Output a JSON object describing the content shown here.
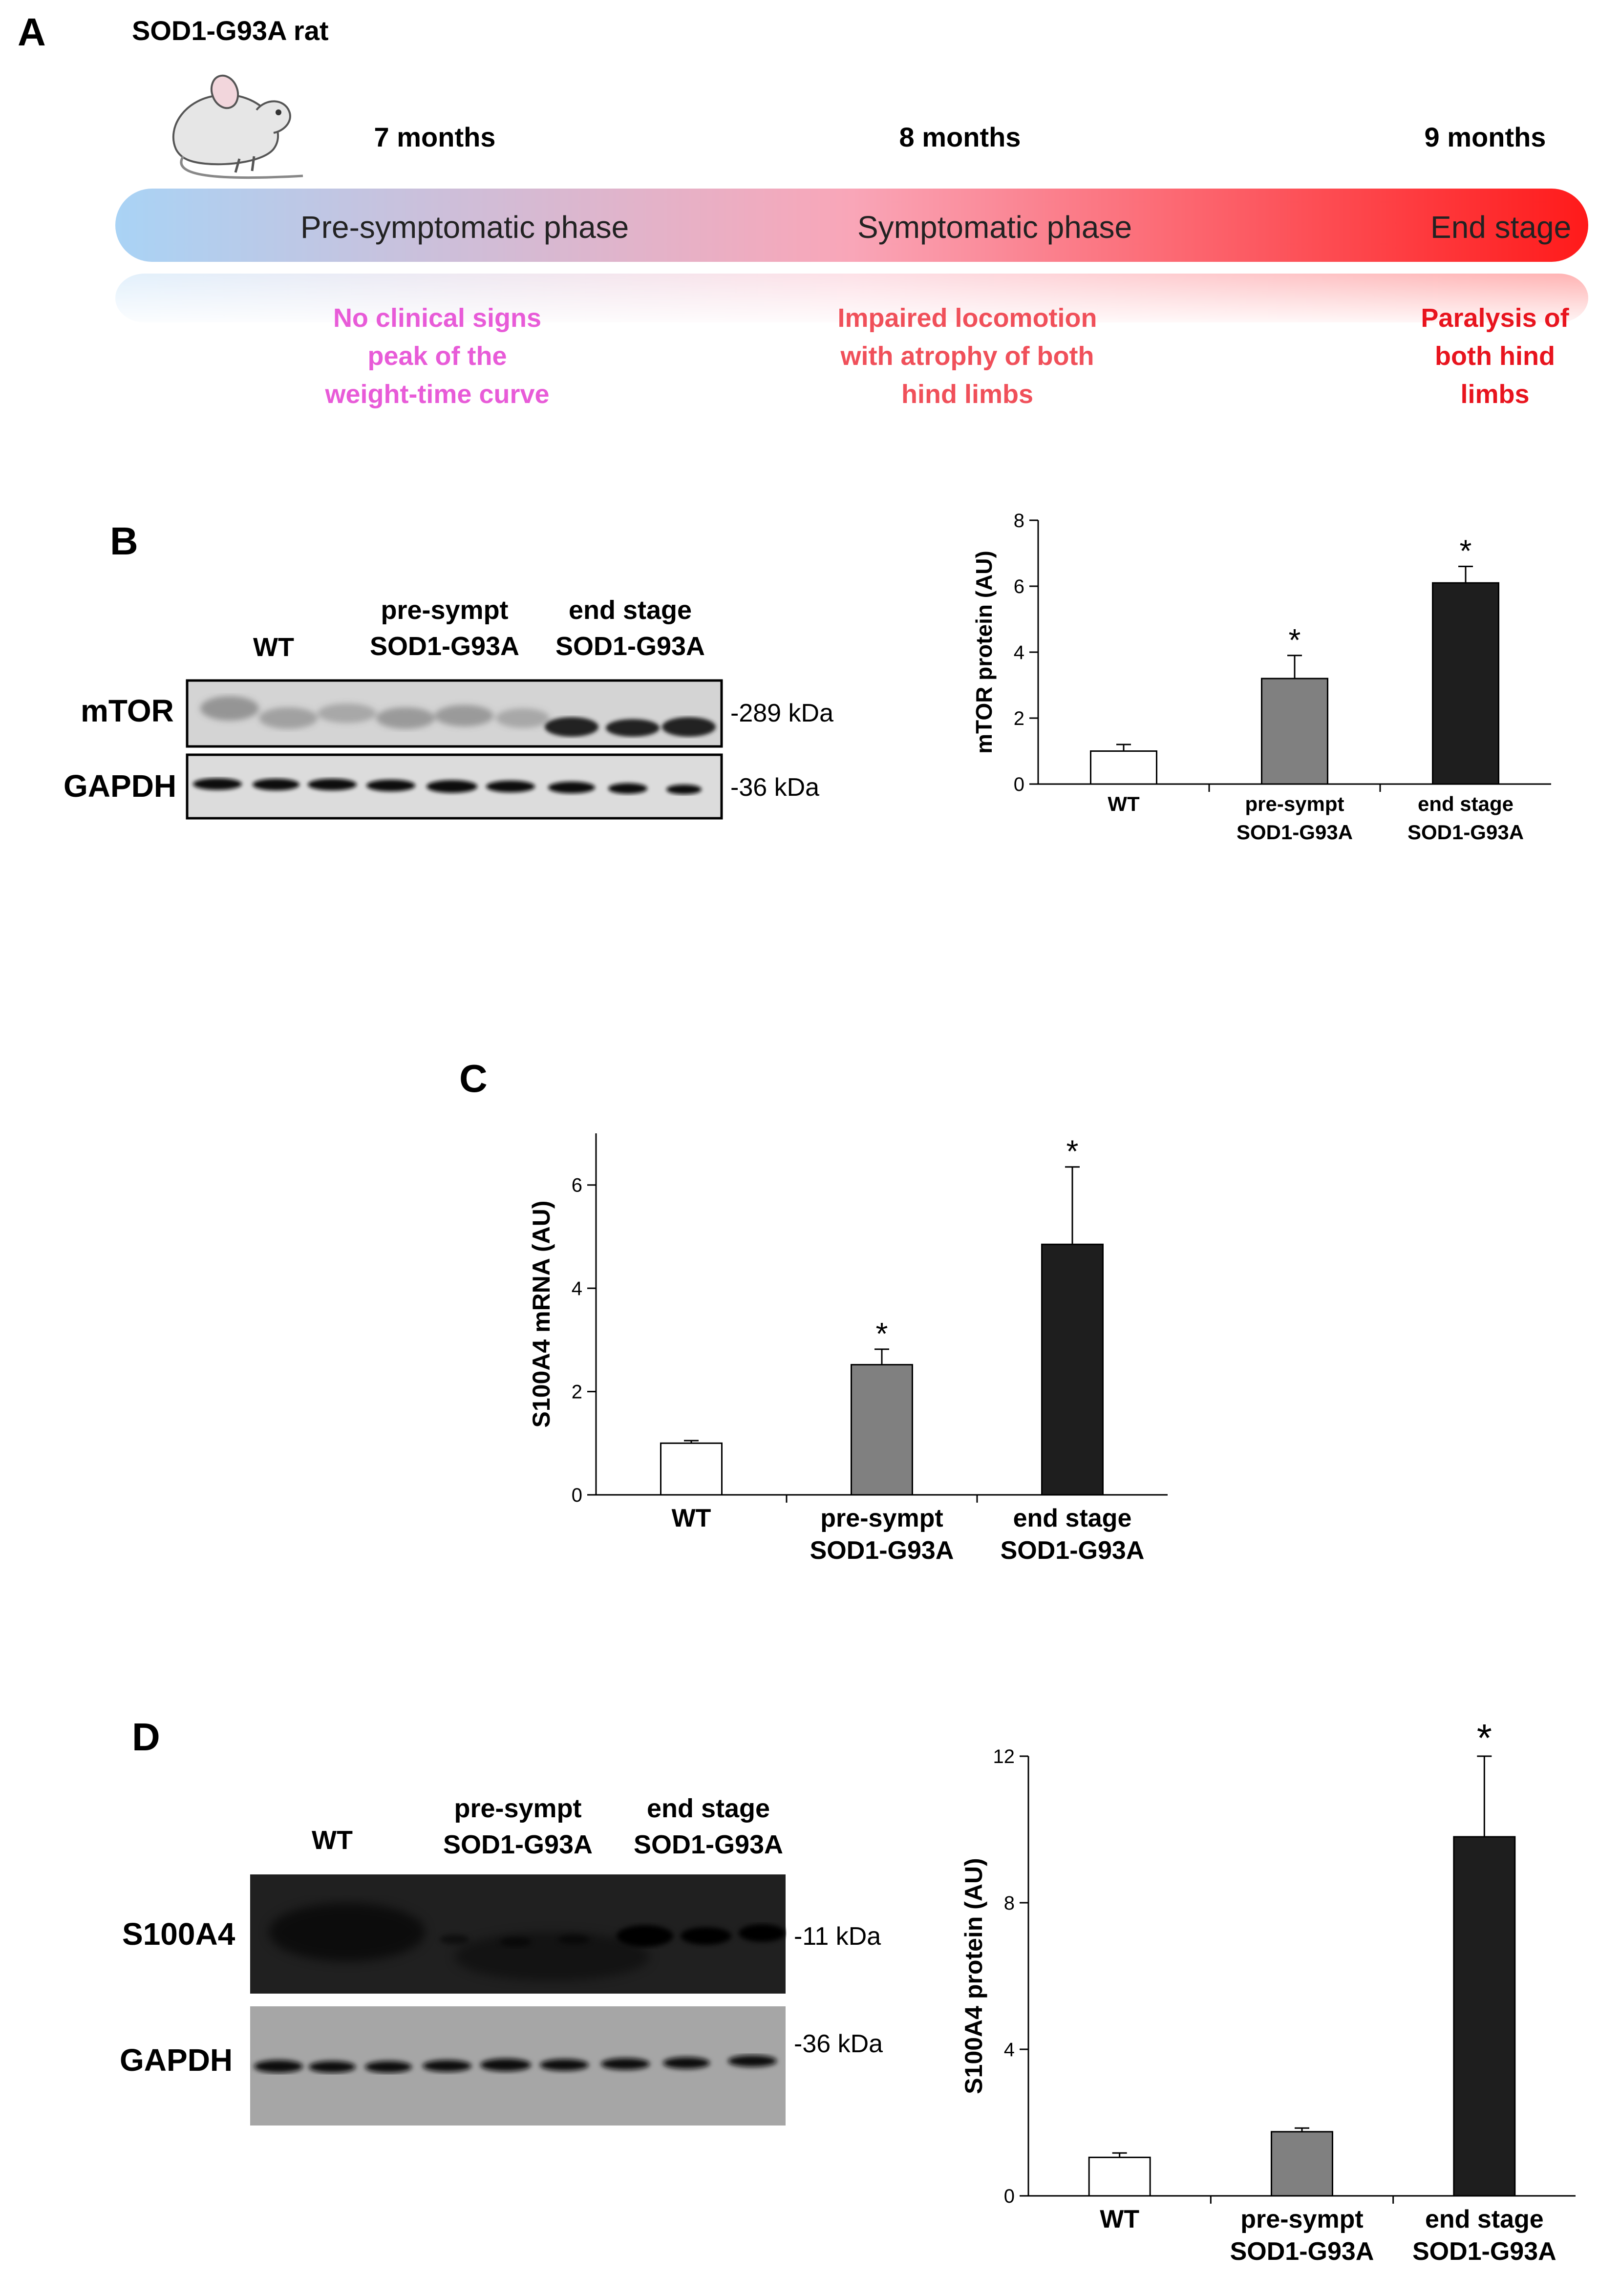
{
  "panel_a": {
    "letter": "A",
    "model": "SOD1-G93A rat",
    "times": [
      "7 months",
      "8 months",
      "9 months"
    ],
    "phases": [
      "Pre-symptomatic phase",
      "Symptomatic phase",
      "End stage"
    ],
    "descriptions": [
      {
        "lines": [
          "No clinical signs",
          "peak of the",
          "weight-time curve"
        ],
        "color": "#e85bd8"
      },
      {
        "lines": [
          "Impaired locomotion",
          "with atrophy of both",
          "hind limbs"
        ],
        "color": "#f0505a"
      },
      {
        "lines": [
          "Paralysis of",
          "both hind",
          "limbs"
        ],
        "color": "#e8141e"
      }
    ],
    "gradient": {
      "start": "#a9d3f5",
      "mid": "#f9a6b8",
      "end": "#ff1a1a"
    }
  },
  "panel_b": {
    "letter": "B",
    "blot": {
      "lanes": [
        [
          "WT"
        ],
        [
          "pre-sympt",
          "SOD1-G93A"
        ],
        [
          "end stage",
          "SOD1-G93A"
        ]
      ],
      "proteins": [
        "mTOR",
        "GAPDH"
      ],
      "sizes": [
        "-289 kDa",
        "-36 kDa"
      ]
    }
  },
  "panel_c": {
    "letter": "C"
  },
  "panel_d": {
    "letter": "D",
    "blot": {
      "lanes": [
        [
          "WT"
        ],
        [
          "pre-sympt",
          "SOD1-G93A"
        ],
        [
          "end stage",
          "SOD1-G93A"
        ]
      ],
      "proteins": [
        "S100A4",
        "GAPDH"
      ],
      "sizes": [
        "-11 kDa",
        "-36 kDa"
      ]
    }
  },
  "chart_data": [
    {
      "id": "chart-b",
      "type": "bar",
      "title": "",
      "xlabel": "",
      "ylabel": "mTOR protein  (AU)",
      "categories": [
        [
          "WT"
        ],
        [
          "pre-sympt",
          "SOD1-G93A"
        ],
        [
          "end stage",
          "SOD1-G93A"
        ]
      ],
      "values": [
        1.0,
        3.2,
        6.1
      ],
      "errors": [
        0.2,
        0.7,
        0.5
      ],
      "significance": [
        "",
        "*",
        "*"
      ],
      "colors": [
        "#ffffff",
        "#808080",
        "#1e1e1e"
      ],
      "ylim": [
        0,
        8
      ],
      "yticks": [
        0,
        2,
        4,
        6,
        8
      ]
    },
    {
      "id": "chart-c",
      "type": "bar",
      "title": "",
      "xlabel": "",
      "ylabel": "S100A4 mRNA  (AU)",
      "categories": [
        [
          "WT"
        ],
        [
          "pre-sympt",
          "SOD1-G93A"
        ],
        [
          "end stage",
          "SOD1-G93A"
        ]
      ],
      "values": [
        1.0,
        2.52,
        4.85
      ],
      "errors": [
        0.05,
        0.3,
        1.5
      ],
      "significance": [
        "",
        "*",
        "*"
      ],
      "colors": [
        "#ffffff",
        "#808080",
        "#1e1e1e"
      ],
      "ylim": [
        0,
        7
      ],
      "yticks": [
        0,
        2,
        4,
        6
      ]
    },
    {
      "id": "chart-d",
      "type": "bar",
      "title": "",
      "xlabel": "",
      "ylabel": "S100A4 protein  (AU)",
      "categories": [
        [
          "WT"
        ],
        [
          "pre-sympt",
          "SOD1-G93A"
        ],
        [
          "end stage",
          "SOD1-G93A"
        ]
      ],
      "values": [
        1.05,
        1.75,
        9.8
      ],
      "errors": [
        0.12,
        0.1,
        2.2
      ],
      "significance": [
        "",
        "",
        "*"
      ],
      "colors": [
        "#ffffff",
        "#808080",
        "#1e1e1e"
      ],
      "ylim": [
        0,
        12
      ],
      "yticks": [
        0,
        4,
        8,
        12
      ]
    }
  ]
}
